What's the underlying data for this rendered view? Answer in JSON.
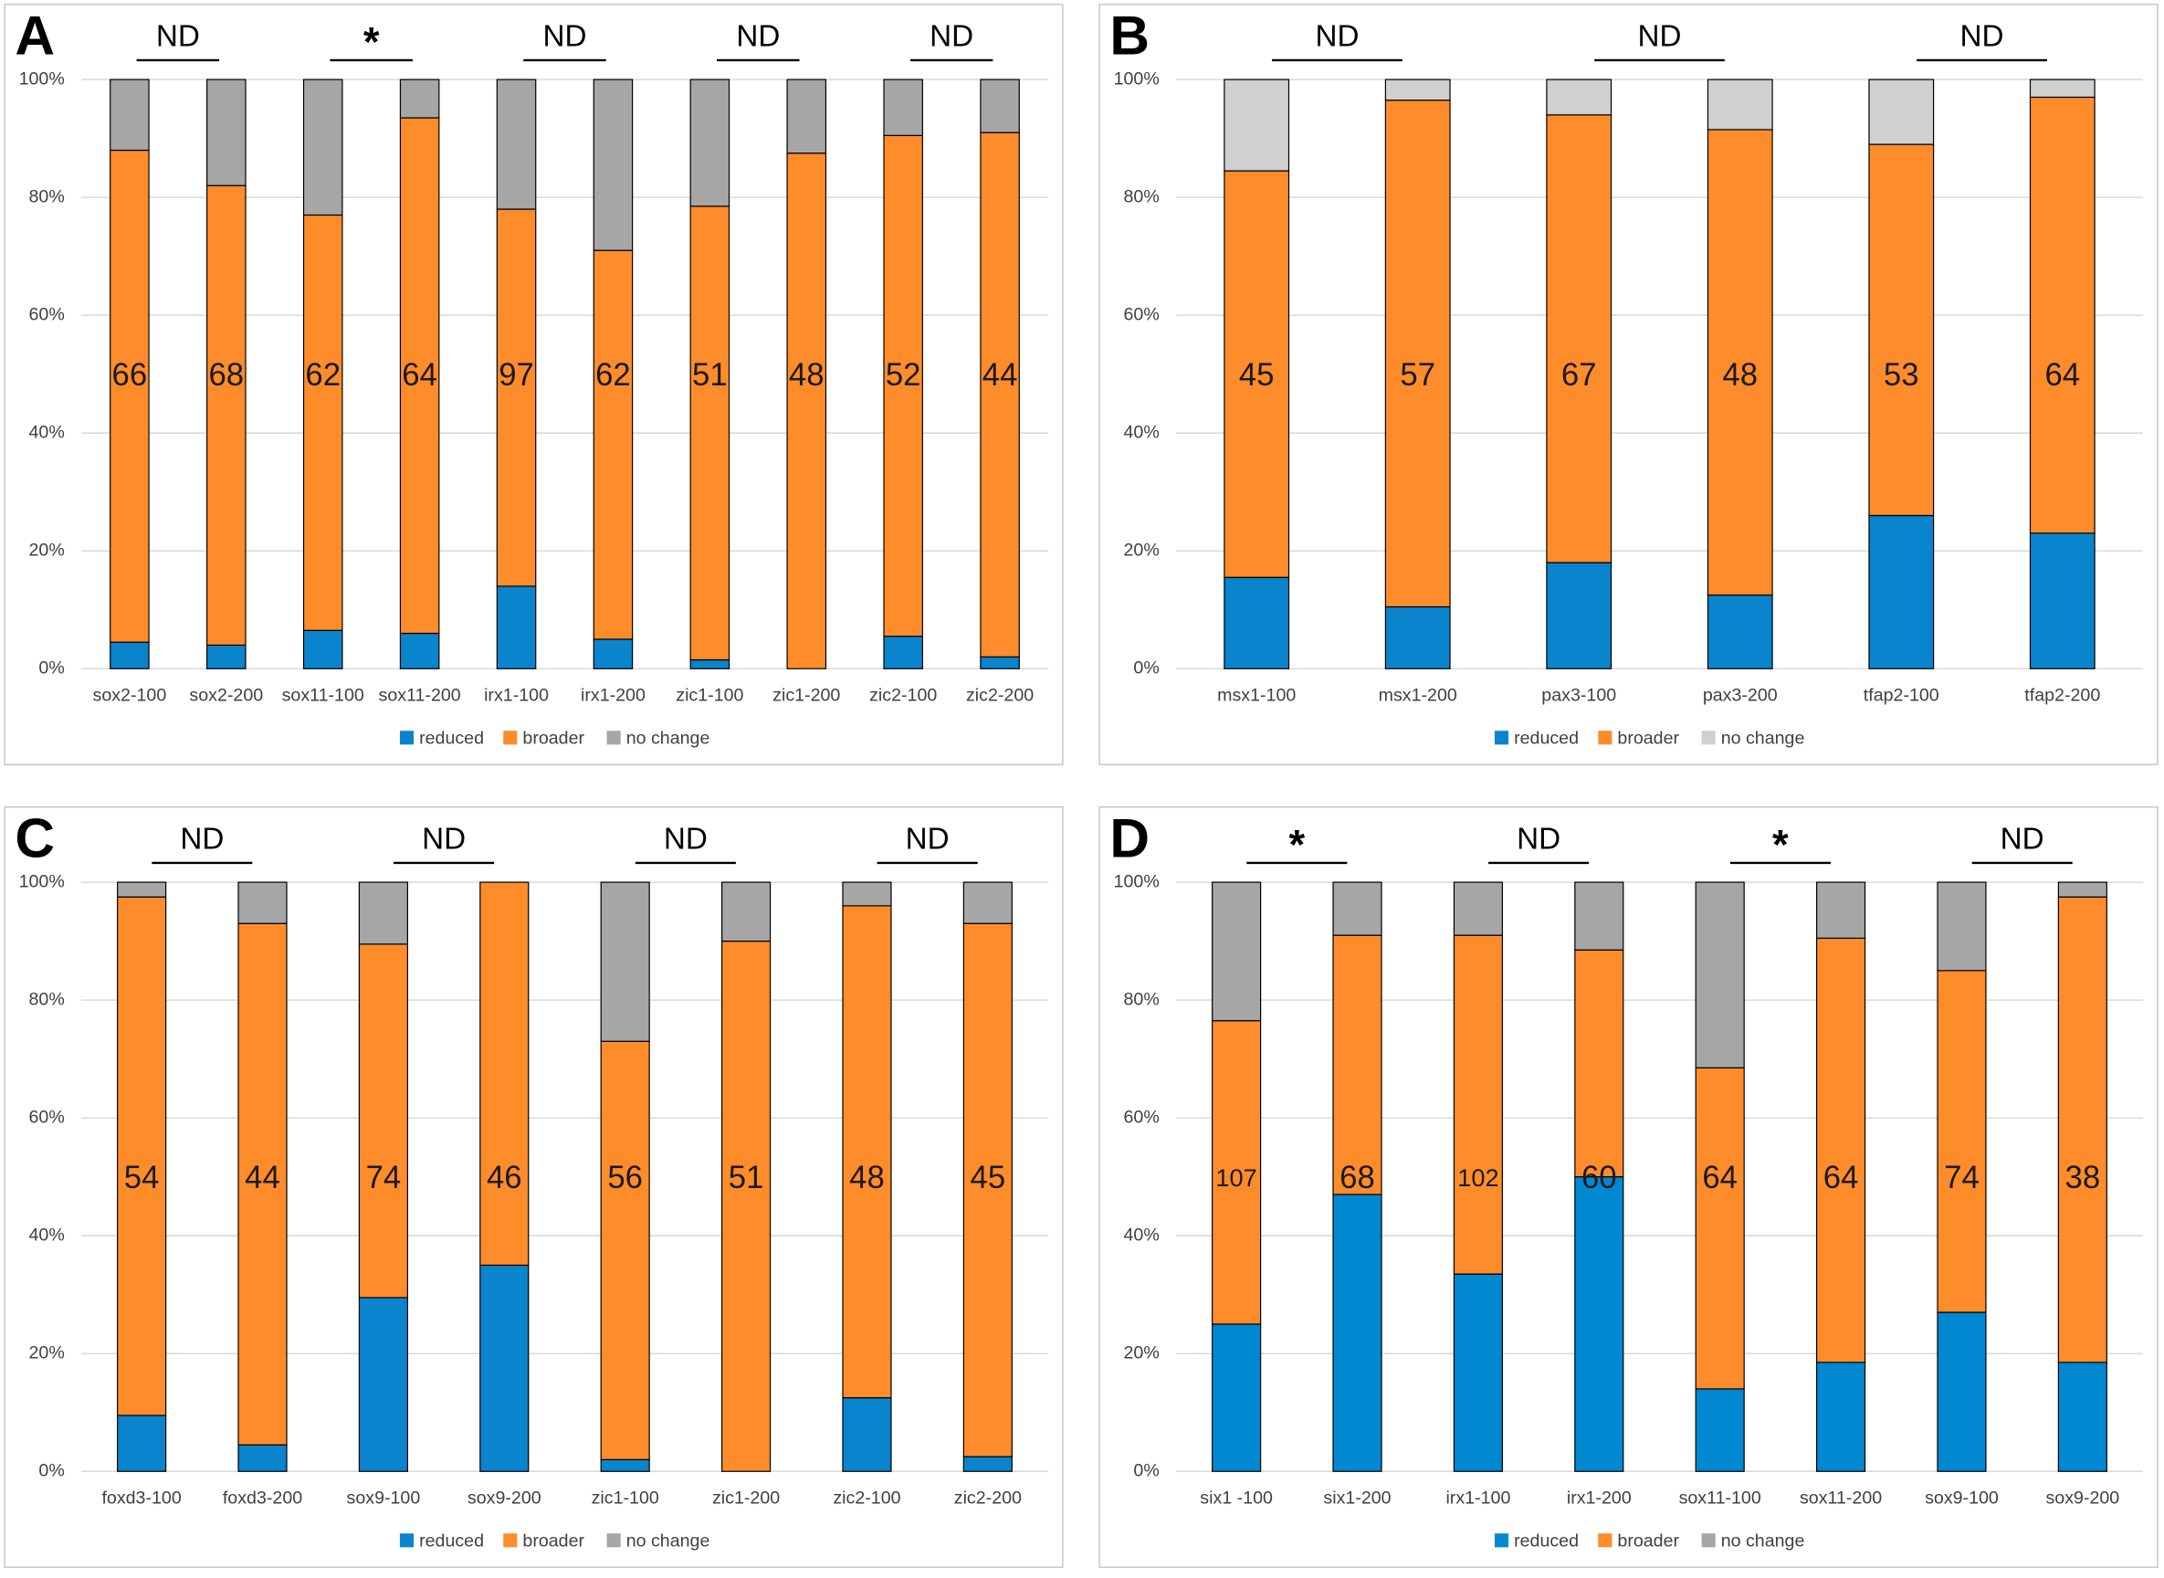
{
  "chart_data": [
    {
      "type": "bar",
      "stacked": true,
      "label": "A",
      "annotations": [
        "ND",
        "*",
        "ND",
        "ND",
        "ND"
      ],
      "categories": [
        "sox2-100",
        "sox2-200",
        "sox11-100",
        "sox11-200",
        "irx1-100",
        "irx1-200",
        "zic1-100",
        "zic1-200",
        "zic2-100",
        "zic2-200"
      ],
      "counts": [
        66,
        68,
        62,
        64,
        97,
        62,
        51,
        48,
        52,
        44
      ],
      "series": [
        {
          "name": "reduced",
          "color": "#0a84cc",
          "values": [
            4.5,
            4,
            6.5,
            6,
            14,
            5,
            1.5,
            0,
            5.5,
            2
          ]
        },
        {
          "name": "broader",
          "color": "#ff8c2b",
          "values": [
            83.5,
            78,
            70.5,
            87.5,
            64,
            66,
            77,
            87.5,
            85,
            89
          ]
        },
        {
          "name": "no change",
          "color": "#a6a6a6",
          "values": [
            12,
            18,
            23,
            6.5,
            22,
            29,
            21.5,
            12.5,
            9.5,
            9
          ]
        }
      ],
      "ylim": [
        0,
        100
      ],
      "yticks": [
        {
          "value": 0,
          "label": "0%"
        },
        {
          "value": 20,
          "label": "20%"
        },
        {
          "value": 40,
          "label": "40%"
        },
        {
          "value": 60,
          "label": "60%"
        },
        {
          "value": 80,
          "label": "80%"
        },
        {
          "value": 100,
          "label": "100%"
        }
      ],
      "grid": true,
      "legend": "bottom"
    },
    {
      "type": "bar",
      "stacked": true,
      "label": "B",
      "annotations": [
        "ND",
        "ND",
        "ND"
      ],
      "categories": [
        "msx1-100",
        "msx1-200",
        "pax3-100",
        "pax3-200",
        "tfap2-100",
        "tfap2-200"
      ],
      "counts": [
        45,
        57,
        67,
        48,
        53,
        64
      ],
      "series": [
        {
          "name": "reduced",
          "color": "#0a84cc",
          "values": [
            15.5,
            10.5,
            18,
            12.5,
            26,
            23
          ]
        },
        {
          "name": "broader",
          "color": "#ff8c2b",
          "values": [
            69,
            86,
            76,
            79,
            63,
            74
          ]
        },
        {
          "name": "no change",
          "color": "#d0d0d0",
          "values": [
            15.5,
            3.5,
            6,
            8.5,
            11,
            3
          ]
        }
      ],
      "ylim": [
        0,
        100
      ],
      "yticks": [
        {
          "value": 0,
          "label": "0%"
        },
        {
          "value": 20,
          "label": "20%"
        },
        {
          "value": 40,
          "label": "40%"
        },
        {
          "value": 60,
          "label": "60%"
        },
        {
          "value": 80,
          "label": "80%"
        },
        {
          "value": 100,
          "label": "100%"
        }
      ],
      "grid": true,
      "legend": "bottom"
    },
    {
      "type": "bar",
      "stacked": true,
      "label": "C",
      "annotations": [
        "ND",
        "ND",
        "ND",
        "ND"
      ],
      "categories": [
        "foxd3-100",
        "foxd3-200",
        "sox9-100",
        "sox9-200",
        "zic1-100",
        "zic1-200",
        "zic2-100",
        "zic2-200"
      ],
      "counts": [
        54,
        44,
        74,
        46,
        56,
        51,
        48,
        45
      ],
      "series": [
        {
          "name": "reduced",
          "color": "#0a84cc",
          "values": [
            9.5,
            4.5,
            29.5,
            35,
            2,
            0,
            12.5,
            2.5
          ]
        },
        {
          "name": "broader",
          "color": "#ff8c2b",
          "values": [
            88,
            88.5,
            60,
            65,
            71,
            90,
            83.5,
            90.5
          ]
        },
        {
          "name": "no change",
          "color": "#a6a6a6",
          "values": [
            2.5,
            7,
            10.5,
            0,
            27,
            10,
            4,
            7
          ]
        }
      ],
      "ylim": [
        0,
        100
      ],
      "yticks": [
        {
          "value": 0,
          "label": "0%"
        },
        {
          "value": 20,
          "label": "20%"
        },
        {
          "value": 40,
          "label": "40%"
        },
        {
          "value": 60,
          "label": "60%"
        },
        {
          "value": 80,
          "label": "80%"
        },
        {
          "value": 100,
          "label": "100%"
        }
      ],
      "grid": true,
      "legend": "bottom"
    },
    {
      "type": "bar",
      "stacked": true,
      "label": "D",
      "annotations": [
        "*",
        "ND",
        "*",
        "ND"
      ],
      "categories": [
        "six1 -100",
        "six1-200",
        "irx1-100",
        "irx1-200",
        "sox11-100",
        "sox11-200",
        "sox9-100",
        "sox9-200"
      ],
      "counts": [
        107,
        68,
        102,
        60,
        64,
        64,
        74,
        38
      ],
      "series": [
        {
          "name": "reduced",
          "color": "#0088d1",
          "values": [
            25,
            47,
            33.5,
            50,
            14,
            18.5,
            27,
            18.5
          ]
        },
        {
          "name": "broader",
          "color": "#ff8c2b",
          "values": [
            51.5,
            44,
            57.5,
            38.5,
            54.5,
            72,
            58,
            79
          ]
        },
        {
          "name": "no change",
          "color": "#a6a6a6",
          "values": [
            23.5,
            9,
            9,
            11.5,
            31.5,
            9.5,
            15,
            2.5
          ]
        }
      ],
      "ylim": [
        0,
        100
      ],
      "yticks": [
        {
          "value": 0,
          "label": "0%"
        },
        {
          "value": 20,
          "label": "20%"
        },
        {
          "value": 40,
          "label": "40%"
        },
        {
          "value": 60,
          "label": "60%"
        },
        {
          "value": 80,
          "label": "80%"
        },
        {
          "value": 100,
          "label": "100%"
        }
      ],
      "grid": true,
      "legend": "bottom"
    }
  ]
}
